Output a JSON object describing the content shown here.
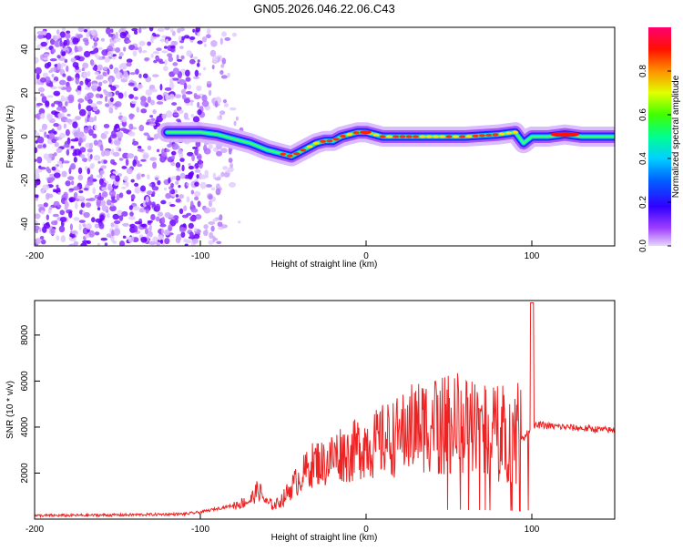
{
  "figure": {
    "title": "GN05.2026.046.22.06.C43"
  },
  "chart_data": [
    {
      "type": "heatmap",
      "name": "spectrogram",
      "title": "",
      "xlabel": "Height of straight line (km)",
      "ylabel": "Frequency (Hz)",
      "xlim": [
        -200,
        150
      ],
      "ylim": [
        -50,
        50
      ],
      "xticks": [
        -200,
        -100,
        0,
        100
      ],
      "yticks": [
        -40,
        -20,
        0,
        20,
        40
      ],
      "colorbar": {
        "label": "Normalized spectral amplitude",
        "range": [
          0,
          1
        ],
        "ticks": [
          "0.0",
          "0.2",
          "0.4",
          "0.6",
          "0.8"
        ],
        "colors": [
          "#e8d8ff",
          "#7a00ff",
          "#0000ff",
          "#00c8ff",
          "#00ff80",
          "#60ff00",
          "#ffff00",
          "#ff8000",
          "#ff0000",
          "#ff0080"
        ]
      },
      "trace": {
        "description": "dominant spectral ridge (frequency vs height)",
        "x": [
          -120,
          -100,
          -90,
          -80,
          -70,
          -60,
          -50,
          -45,
          -40,
          -35,
          -30,
          -25,
          -20,
          -15,
          -10,
          -5,
          0,
          10,
          20,
          40,
          60,
          80,
          90,
          95,
          100,
          110,
          120,
          130,
          150
        ],
        "y": [
          2,
          2,
          1,
          -1,
          -3,
          -6,
          -8,
          -9,
          -7,
          -5,
          -3,
          -2,
          -2,
          0,
          1,
          2,
          2,
          0,
          0,
          0,
          0,
          1,
          2,
          -3,
          0,
          0,
          1,
          0,
          0
        ]
      }
    },
    {
      "type": "line",
      "name": "snr",
      "title": "",
      "xlabel": "Height of straight line (km)",
      "ylabel": "SNR (10 * v/v)",
      "xlim": [
        -200,
        150
      ],
      "ylim": [
        0,
        9500
      ],
      "xticks": [
        -200,
        -100,
        0,
        100
      ],
      "yticks": [
        2000,
        4000,
        6000,
        8000
      ],
      "color": "#ee2222",
      "series": [
        {
          "name": "SNR envelope",
          "x": [
            -200,
            -150,
            -110,
            -100,
            -90,
            -80,
            -70,
            -65,
            -60,
            -55,
            -50,
            -45,
            -40,
            -35,
            -30,
            -25,
            -20,
            -15,
            -10,
            -5,
            0,
            5,
            10,
            15,
            20,
            25,
            30,
            35,
            40,
            45,
            50,
            55,
            60,
            65,
            70,
            75,
            80,
            85,
            90,
            95,
            100,
            105,
            110,
            120,
            130,
            140,
            150
          ],
          "y": [
            150,
            180,
            220,
            300,
            450,
            600,
            800,
            1300,
            700,
            600,
            900,
            1400,
            1800,
            2200,
            2500,
            2400,
            2700,
            2900,
            2800,
            3100,
            3300,
            3200,
            3400,
            3500,
            3600,
            3900,
            4000,
            4100,
            4200,
            4000,
            4100,
            4200,
            4000,
            3900,
            4000,
            3800,
            3700,
            3800,
            3600,
            3500,
            4000,
            4100,
            4050,
            4000,
            3950,
            3900,
            3850
          ]
        }
      ]
    }
  ]
}
